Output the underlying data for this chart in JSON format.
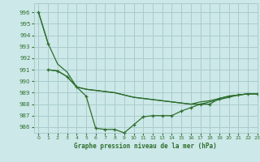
{
  "title": "Graphe pression niveau de la mer (hPa)",
  "bg_color": "#cce8e8",
  "grid_color": "#aacccc",
  "line_color": "#2d6e2d",
  "xlim": [
    -0.5,
    23
  ],
  "ylim": [
    985.5,
    996.8
  ],
  "yticks": [
    986,
    987,
    988,
    989,
    990,
    991,
    992,
    993,
    994,
    995,
    996
  ],
  "xticks": [
    0,
    1,
    2,
    3,
    4,
    5,
    6,
    7,
    8,
    9,
    10,
    11,
    12,
    13,
    14,
    15,
    16,
    17,
    18,
    19,
    20,
    21,
    22,
    23
  ],
  "series1_x": [
    0,
    1
  ],
  "series1_y": [
    996.0,
    993.3
  ],
  "series2_x": [
    1,
    2,
    3,
    4,
    5,
    6,
    7,
    8,
    9,
    10,
    11,
    12,
    13,
    14,
    15,
    16,
    17,
    18,
    19,
    20,
    21,
    22,
    23
  ],
  "series2_y": [
    991.0,
    990.9,
    990.4,
    989.5,
    988.7,
    985.9,
    985.8,
    985.8,
    985.5,
    986.2,
    986.9,
    987.0,
    987.0,
    987.0,
    987.4,
    987.7,
    988.0,
    988.0,
    988.5,
    988.7,
    988.8,
    988.9,
    988.9
  ],
  "series3_x": [
    0,
    1,
    2,
    3,
    4,
    5,
    6,
    7,
    8,
    9,
    10,
    11,
    12,
    13,
    14,
    15,
    16,
    17,
    18,
    19,
    20,
    21,
    22,
    23
  ],
  "series3_y": [
    996.0,
    993.3,
    991.5,
    990.8,
    989.5,
    989.3,
    989.2,
    989.1,
    989.0,
    988.8,
    988.6,
    988.5,
    988.4,
    988.3,
    988.2,
    988.1,
    988.0,
    988.2,
    988.3,
    988.5,
    988.7,
    988.8,
    988.9,
    988.9
  ],
  "series4_x": [
    1,
    2,
    3,
    4,
    5,
    6,
    7,
    8,
    9,
    10,
    11,
    12,
    13,
    14,
    15,
    16,
    17,
    18,
    19,
    20,
    21,
    22,
    23
  ],
  "series4_y": [
    991.0,
    990.9,
    990.4,
    989.5,
    989.3,
    989.2,
    989.1,
    989.0,
    988.8,
    988.6,
    988.5,
    988.4,
    988.3,
    988.2,
    988.1,
    988.0,
    988.0,
    988.2,
    988.4,
    988.6,
    988.8,
    988.9,
    988.9
  ]
}
